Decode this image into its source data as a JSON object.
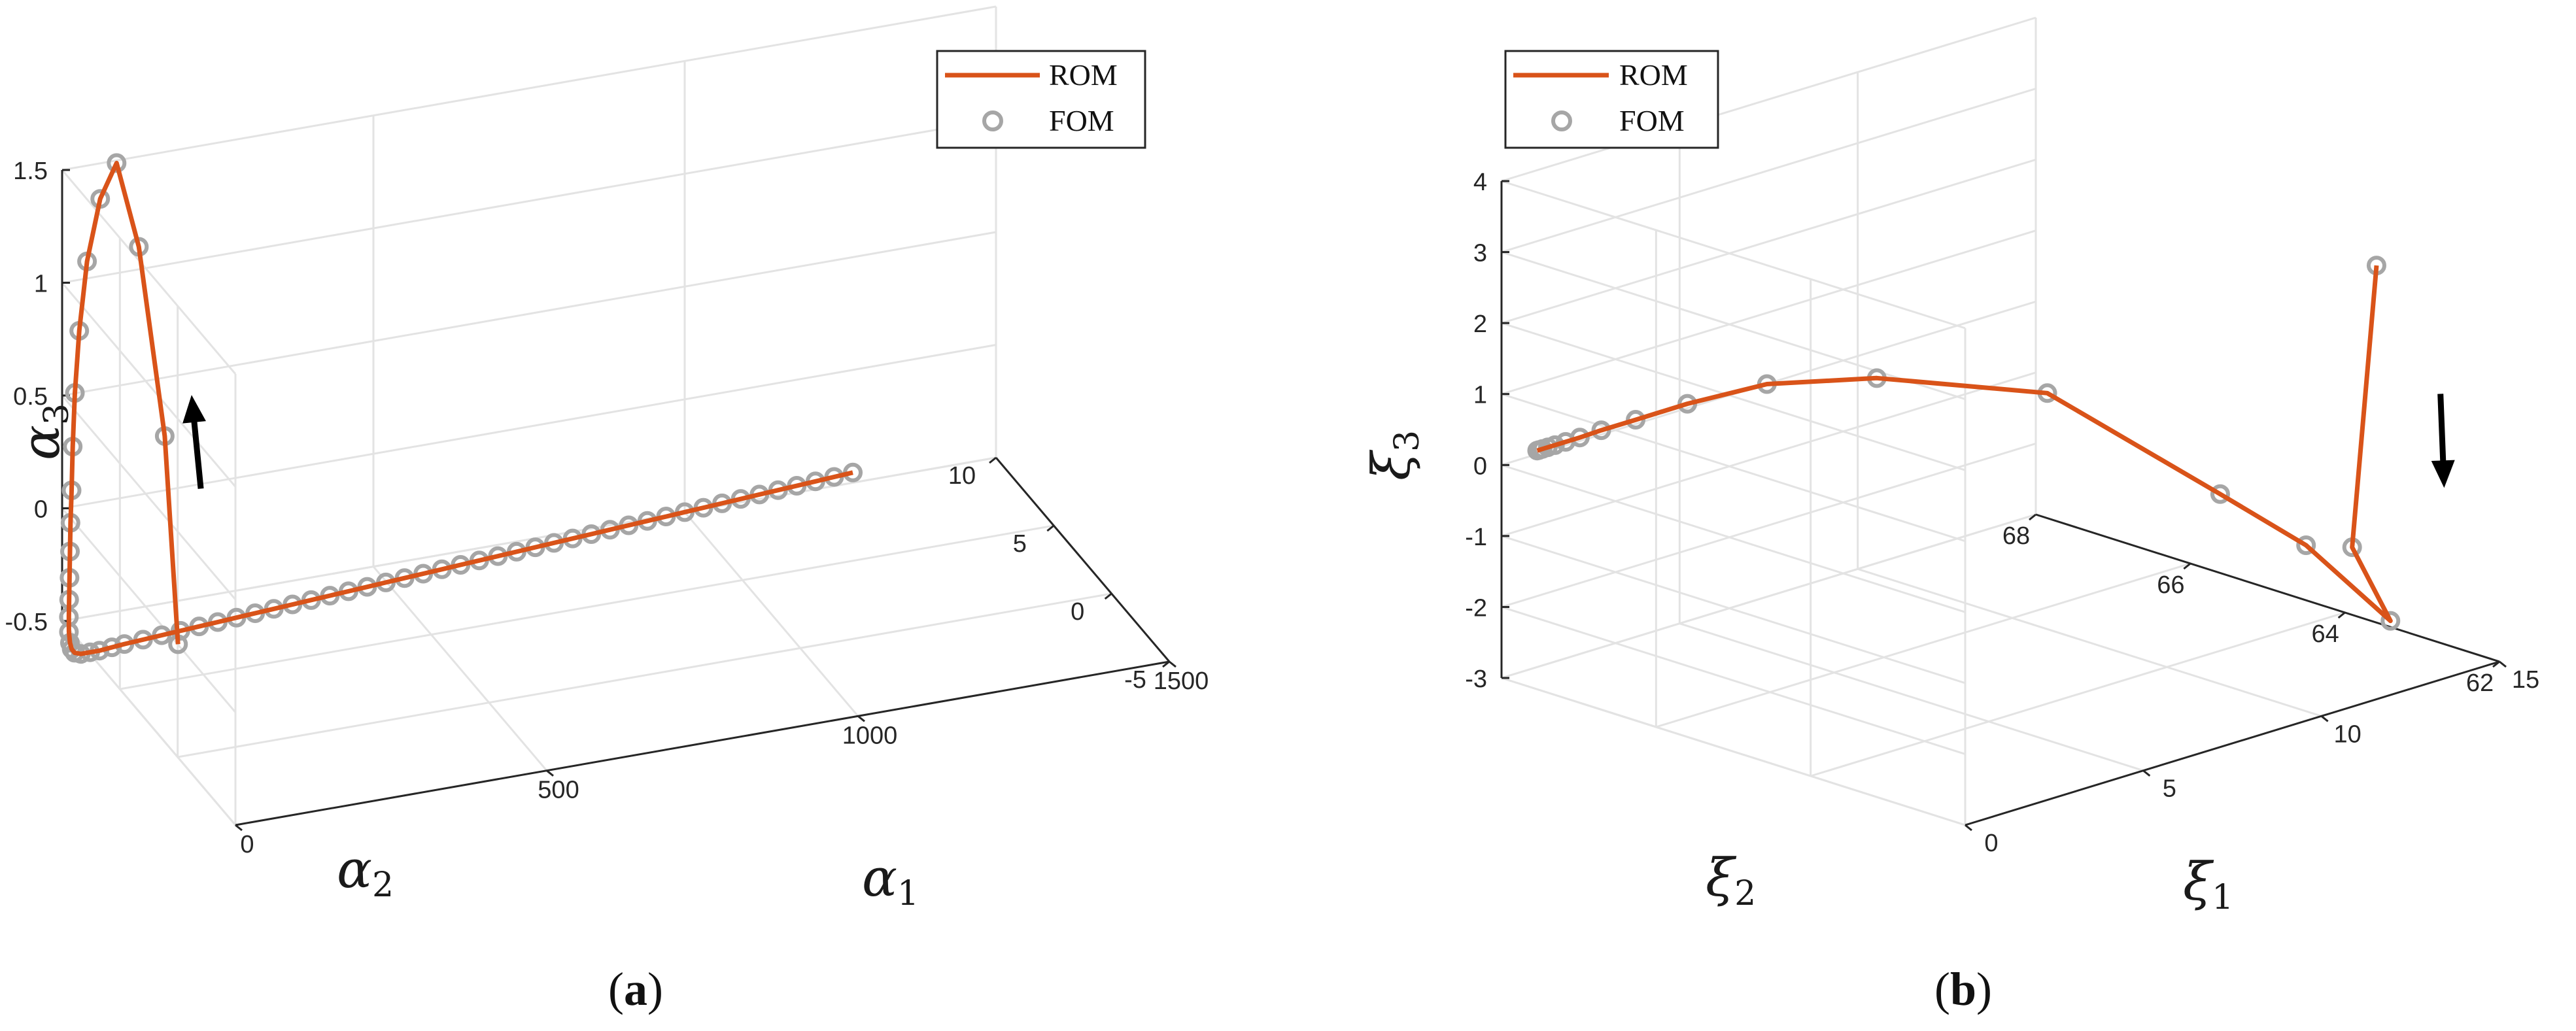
{
  "colors": {
    "rom": "#D95319",
    "fom": "#a6a6a6",
    "grid": "#e3e3e3",
    "axis": "#262626",
    "arrow": "#000000"
  },
  "chart_data": [
    {
      "type": "line",
      "panel": "a",
      "caption": "a",
      "legend": {
        "position": "top-right",
        "entries": [
          "ROM",
          "FOM"
        ]
      },
      "xlabel": {
        "base": "α",
        "sub": "1"
      },
      "ylabel": {
        "base": "α",
        "sub": "2"
      },
      "zlabel": {
        "base": "α",
        "sub": "3"
      },
      "xlim": [
        0,
        1500
      ],
      "ylim": [
        -5,
        10
      ],
      "zlim": [
        -0.5,
        1.5
      ],
      "xticks": [
        "0",
        "500",
        "1000",
        "1500"
      ],
      "yticks": [
        "-5",
        "0",
        "5",
        "10"
      ],
      "zticks": [
        "-0.5",
        "0",
        "0.5",
        "1",
        "1.5"
      ],
      "series": [
        {
          "name": "ROM",
          "style": "line"
        },
        {
          "name": "FOM",
          "style": "markers"
        }
      ],
      "points": [
        [
          0.6,
          0,
          0
        ],
        [
          1.5,
          1.2,
          0.85
        ],
        [
          2.6,
          3.5,
          1.55
        ],
        [
          4.0,
          5.5,
          1.8
        ],
        [
          5.5,
          7.0,
          1.55
        ],
        [
          6.6,
          8.2,
          1.2
        ],
        [
          7.1,
          8.9,
          0.85
        ],
        [
          7.5,
          9.3,
          0.55
        ],
        [
          7.7,
          9.5,
          0.3
        ],
        [
          7.8,
          9.6,
          0.1
        ],
        [
          7.9,
          9.7,
          -0.05
        ],
        [
          8.0,
          9.75,
          -0.18
        ],
        [
          8.2,
          9.8,
          -0.3
        ],
        [
          8.5,
          9.85,
          -0.4
        ],
        [
          9.0,
          9.9,
          -0.48
        ],
        [
          10,
          9.95,
          -0.55
        ],
        [
          12,
          9.97,
          -0.6
        ],
        [
          15,
          9.98,
          -0.63
        ],
        [
          20,
          10,
          -0.65
        ],
        [
          30,
          10,
          -0.66
        ],
        [
          45,
          10,
          -0.66
        ],
        [
          60,
          10,
          -0.66
        ],
        [
          80,
          10,
          -0.655
        ],
        [
          100,
          10,
          -0.65
        ],
        [
          130,
          10,
          -0.645
        ],
        [
          160,
          10,
          -0.64
        ],
        [
          190,
          10,
          -0.635
        ],
        [
          220,
          10,
          -0.63
        ],
        [
          250,
          10,
          -0.625
        ],
        [
          280,
          10,
          -0.62
        ],
        [
          310,
          10,
          -0.615
        ],
        [
          340,
          10,
          -0.61
        ],
        [
          370,
          10,
          -0.605
        ],
        [
          400,
          10,
          -0.6
        ],
        [
          430,
          10,
          -0.595
        ],
        [
          460,
          10,
          -0.59
        ],
        [
          490,
          10,
          -0.585
        ],
        [
          520,
          10,
          -0.58
        ],
        [
          550,
          10,
          -0.575
        ],
        [
          580,
          10,
          -0.57
        ],
        [
          610,
          10,
          -0.565
        ],
        [
          640,
          10,
          -0.56
        ],
        [
          670,
          10,
          -0.555
        ],
        [
          700,
          10,
          -0.55
        ],
        [
          730,
          10,
          -0.545
        ],
        [
          760,
          10,
          -0.54
        ],
        [
          790,
          10,
          -0.535
        ],
        [
          820,
          10,
          -0.53
        ],
        [
          850,
          10,
          -0.525
        ],
        [
          880,
          10,
          -0.52
        ],
        [
          910,
          10,
          -0.515
        ],
        [
          940,
          10,
          -0.51
        ],
        [
          970,
          10,
          -0.505
        ],
        [
          1000,
          10,
          -0.5
        ],
        [
          1030,
          10,
          -0.495
        ],
        [
          1060,
          10,
          -0.49
        ],
        [
          1090,
          10,
          -0.485
        ],
        [
          1120,
          10,
          -0.48
        ],
        [
          1150,
          10,
          -0.475
        ],
        [
          1180,
          10,
          -0.47
        ],
        [
          1210,
          10,
          -0.465
        ],
        [
          1240,
          10,
          -0.46
        ],
        [
          1270,
          10,
          -0.455
        ]
      ],
      "annotation": {
        "type": "arrow",
        "direction": "toward decreasing α2 along the initial segment"
      }
    },
    {
      "type": "line",
      "panel": "b",
      "caption": "b",
      "legend": {
        "position": "top-left",
        "entries": [
          "ROM",
          "FOM"
        ]
      },
      "xlabel": {
        "base": "ξ",
        "sub": "1"
      },
      "ylabel": {
        "base": "ξ",
        "sub": "2"
      },
      "zlabel": {
        "base": "ξ",
        "sub": "3"
      },
      "xlim": [
        62,
        68
      ],
      "ylim": [
        0,
        15
      ],
      "zlim": [
        -3,
        4
      ],
      "xticks": [
        "62",
        "64",
        "66",
        "68"
      ],
      "yticks": [
        "0",
        "5",
        "10",
        "15"
      ],
      "zticks": [
        "-3",
        "-2",
        "-1",
        "0",
        "1",
        "2",
        "3",
        "4"
      ],
      "series": [
        {
          "name": "ROM",
          "style": "line"
        },
        {
          "name": "FOM",
          "style": "markers"
        }
      ],
      "points": [
        [
          62.9,
          13.5,
          2.5
        ],
        [
          63.1,
          13.25,
          -1.5
        ],
        [
          62.95,
          14.0,
          -2.6
        ],
        [
          63.95,
          13.8,
          -1.85
        ],
        [
          64.6,
          12.8,
          -1.2
        ],
        [
          66.1,
          11.2,
          -0.05
        ],
        [
          67.2,
          8.8,
          0.15
        ],
        [
          67.7,
          6.8,
          0.2
        ],
        [
          67.9,
          5.0,
          0.13
        ],
        [
          67.97,
          3.7,
          0.08
        ],
        [
          68,
          2.8,
          0.06
        ],
        [
          68,
          2.2,
          0.05
        ],
        [
          68,
          1.8,
          0.05
        ],
        [
          68,
          1.5,
          0.05
        ],
        [
          68,
          1.3,
          0.05
        ],
        [
          68,
          1.15,
          0.05
        ],
        [
          68,
          1.05,
          0.05
        ],
        [
          68,
          1.0,
          0.05
        ]
      ],
      "annotation": {
        "type": "arrow",
        "direction": "toward decreasing ξ3 along the initial segment"
      }
    }
  ]
}
